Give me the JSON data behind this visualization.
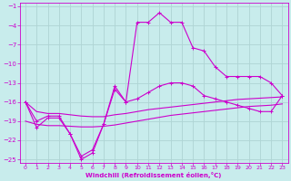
{
  "xlabel": "Windchill (Refroidissement éolien,°C)",
  "bg_color": "#c8ecec",
  "grid_color": "#aed4d4",
  "line_color": "#cc00cc",
  "xlim": [
    -0.5,
    23.5
  ],
  "ylim": [
    -25.5,
    -0.5
  ],
  "yticks": [
    -25,
    -22,
    -19,
    -16,
    -13,
    -10,
    -7,
    -4,
    -1
  ],
  "xticks": [
    0,
    1,
    2,
    3,
    4,
    5,
    6,
    7,
    8,
    9,
    10,
    11,
    12,
    13,
    14,
    15,
    16,
    17,
    18,
    19,
    20,
    21,
    22,
    23
  ],
  "s1x": [
    0,
    1,
    2,
    3,
    4,
    5,
    6,
    7,
    8,
    9,
    10,
    11,
    12,
    13,
    14,
    15,
    16,
    17,
    18,
    19,
    20,
    21,
    22,
    23
  ],
  "s1y": [
    -16,
    -20,
    -18.5,
    -18.5,
    -21,
    -25,
    -24,
    -19.5,
    -14,
    -16,
    -3.5,
    -3.5,
    -2.0,
    -3.5,
    -3.5,
    -7.5,
    -8,
    -10.5,
    -12,
    -12,
    -12,
    -12,
    -13,
    -15
  ],
  "s2x": [
    0,
    1,
    2,
    3,
    4,
    5,
    6,
    7,
    8,
    9,
    10,
    11,
    12,
    13,
    14,
    15,
    16,
    17,
    18,
    19,
    20,
    21,
    22,
    23
  ],
  "s2y": [
    -16,
    -19,
    -18.2,
    -18.2,
    -21,
    -24.5,
    -23.5,
    -19.5,
    -13.5,
    -16,
    -15.5,
    -14.5,
    -13.5,
    -13,
    -13,
    -13.5,
    -15,
    -15.5,
    -16,
    -16.5,
    -17,
    -17.5,
    -17.5,
    -15
  ],
  "s3x": [
    0,
    1,
    2,
    3,
    4,
    5,
    6,
    7,
    8,
    9,
    10,
    11,
    12,
    13,
    14,
    15,
    16,
    17,
    18,
    19,
    20,
    21,
    22,
    23
  ],
  "s3y": [
    -16,
    -17.5,
    -17.8,
    -17.8,
    -18,
    -18.2,
    -18.3,
    -18.3,
    -18,
    -17.8,
    -17.5,
    -17.2,
    -17,
    -16.8,
    -16.6,
    -16.4,
    -16.2,
    -16.0,
    -15.8,
    -15.6,
    -15.5,
    -15.4,
    -15.3,
    -15.2
  ],
  "s4x": [
    0,
    1,
    2,
    3,
    4,
    5,
    6,
    7,
    8,
    9,
    10,
    11,
    12,
    13,
    14,
    15,
    16,
    17,
    18,
    19,
    20,
    21,
    22,
    23
  ],
  "s4y": [
    -19,
    -19.5,
    -19.7,
    -19.7,
    -19.8,
    -19.9,
    -19.9,
    -19.8,
    -19.6,
    -19.3,
    -19.0,
    -18.7,
    -18.4,
    -18.1,
    -17.9,
    -17.7,
    -17.5,
    -17.3,
    -17.1,
    -16.9,
    -16.7,
    -16.6,
    -16.5,
    -16.3
  ]
}
